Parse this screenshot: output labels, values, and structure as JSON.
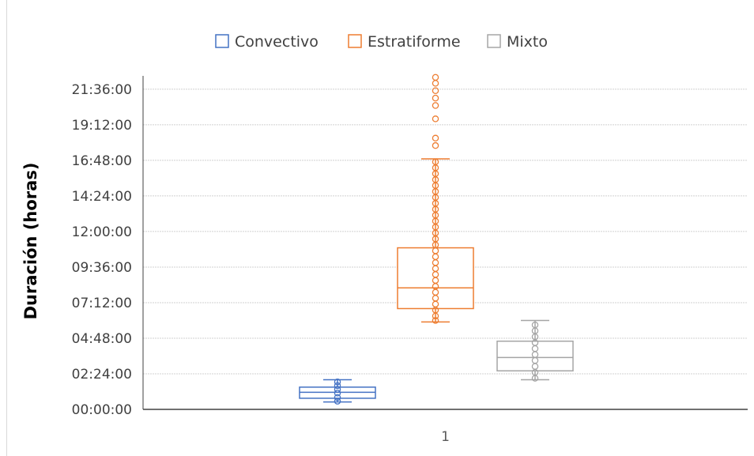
{
  "chart_data": {
    "type": "box",
    "title": "",
    "xlabel": "",
    "ylabel": "Duración (horas)",
    "categories": [
      "1"
    ],
    "y_unit": "hours",
    "ylim": [
      0,
      22.5
    ],
    "y_ticks": [
      0,
      2.4,
      4.8,
      7.2,
      9.6,
      12,
      14.4,
      16.8,
      19.2,
      21.6
    ],
    "y_tick_labels": [
      "00:00:00",
      "02:24:00",
      "04:48:00",
      "07:12:00",
      "09:36:00",
      "12:00:00",
      "14:24:00",
      "16:48:00",
      "19:12:00",
      "21:36:00"
    ],
    "grid": "horizontal",
    "legend_position": "top",
    "series": [
      {
        "name": "Convectivo",
        "color": "#4472c4",
        "min": 0.5,
        "q1": 0.75,
        "median": 1.15,
        "q3": 1.5,
        "max": 2.0,
        "points": [
          0.55,
          0.8,
          1.1,
          1.35,
          1.6,
          1.85
        ]
      },
      {
        "name": "Estratiforme",
        "color": "#ed7d31",
        "min": 5.9,
        "q1": 6.8,
        "median": 8.2,
        "q3": 10.9,
        "max": 16.9,
        "points": [
          6.0,
          6.3,
          6.7,
          7.1,
          7.5,
          7.9,
          8.3,
          8.7,
          9.1,
          9.5,
          9.9,
          10.3,
          10.7,
          11.1,
          11.5,
          11.9,
          12.3,
          12.7,
          13.1,
          13.5,
          13.9,
          14.3,
          14.7,
          15.1,
          15.5,
          15.9,
          16.3,
          16.7,
          17.8,
          18.3,
          19.6,
          20.5,
          21.0,
          21.5,
          22.0,
          22.4
        ]
      },
      {
        "name": "Mixto",
        "color": "#a5a5a5",
        "min": 2.0,
        "q1": 2.6,
        "median": 3.5,
        "q3": 4.6,
        "max": 6.0,
        "points": [
          2.1,
          2.5,
          2.9,
          3.3,
          3.7,
          4.1,
          4.5,
          4.9,
          5.3,
          5.7
        ]
      }
    ]
  }
}
